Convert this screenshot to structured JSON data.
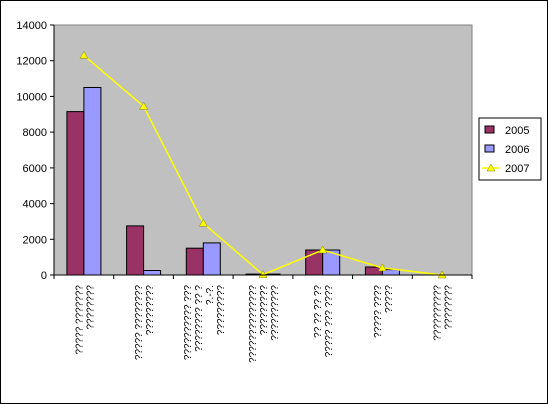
{
  "chart_data": {
    "type": "bar",
    "title": "",
    "xlabel": "",
    "ylabel": "",
    "ylim": [
      0,
      14000
    ],
    "yticks": [
      "0",
      "2000",
      "4000",
      "6000",
      "8000",
      "10000",
      "12000",
      "14000"
    ],
    "ytick_values": [
      0,
      2000,
      4000,
      6000,
      8000,
      10000,
      12000,
      14000
    ],
    "grid": false,
    "legend_position": "right",
    "categories": [
      "????? ??????? ????????",
      "????? ???????? ?????????",
      "?????????? ??? ???????? ?? ? ?.-?. ?????????",
      "?????????????? ????????? ??????????",
      "?? ?? ?? ?? ????? ??? ????",
      "????? ???? ?????",
      "?????????? ????????"
    ],
    "series": [
      {
        "name": "2005",
        "kind": "bar",
        "color": "#993366",
        "values": [
          9150,
          2750,
          1500,
          50,
          1400,
          450,
          0
        ]
      },
      {
        "name": "2006",
        "kind": "bar",
        "color": "#9999FF",
        "values": [
          10500,
          250,
          1800,
          50,
          1400,
          300,
          0
        ]
      },
      {
        "name": "2007",
        "kind": "line",
        "color": "#FFFF00",
        "values": [
          12300,
          9450,
          2900,
          20,
          1400,
          400,
          0
        ]
      }
    ],
    "colors": {
      "plot_background": "#C0C0C0",
      "axis": "#000000"
    }
  }
}
